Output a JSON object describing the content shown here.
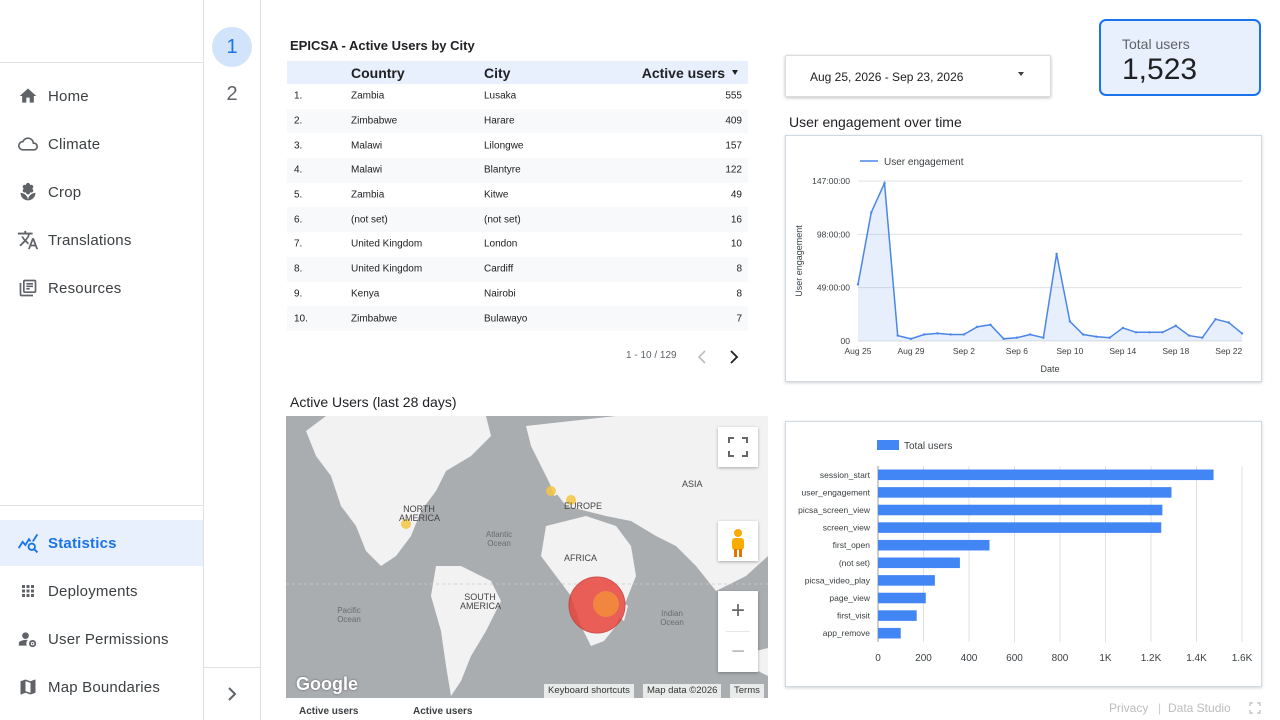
{
  "sidebar": {
    "items": [
      {
        "label": "Home",
        "icon": "home-icon"
      },
      {
        "label": "Climate",
        "icon": "cloud-icon"
      },
      {
        "label": "Crop",
        "icon": "sprout-icon"
      },
      {
        "label": "Translations",
        "icon": "translate-icon"
      },
      {
        "label": "Resources",
        "icon": "library-icon"
      }
    ],
    "bottom_items": [
      {
        "label": "Statistics",
        "icon": "analytics-icon",
        "active": true
      },
      {
        "label": "Deployments",
        "icon": "apps-grid-icon"
      },
      {
        "label": "User Permissions",
        "icon": "user-settings-icon"
      },
      {
        "label": "Map Boundaries",
        "icon": "map-icon"
      }
    ]
  },
  "pages": [
    "1",
    "2"
  ],
  "table": {
    "title": "EPICSA - Active Users by City",
    "headers": [
      "Country",
      "City",
      "Active users"
    ],
    "rows": [
      [
        "1.",
        "Zambia",
        "Lusaka",
        "555"
      ],
      [
        "2.",
        "Zimbabwe",
        "Harare",
        "409"
      ],
      [
        "3.",
        "Malawi",
        "Lilongwe",
        "157"
      ],
      [
        "4.",
        "Malawi",
        "Blantyre",
        "122"
      ],
      [
        "5.",
        "Zambia",
        "Kitwe",
        "49"
      ],
      [
        "6.",
        "(not set)",
        "(not set)",
        "16"
      ],
      [
        "7.",
        "United Kingdom",
        "London",
        "10"
      ],
      [
        "8.",
        "United Kingdom",
        "Cardiff",
        "8"
      ],
      [
        "9.",
        "Kenya",
        "Nairobi",
        "8"
      ],
      [
        "10.",
        "Zimbabwe",
        "Bulawayo",
        "7"
      ]
    ],
    "pager": "1 - 10 / 129"
  },
  "date_range": "Aug 25, 2026 - Sep 23, 2026",
  "kpi": {
    "label": "Total users",
    "value": "1,523"
  },
  "engagement_title": "User engagement over time",
  "map": {
    "title": "Active Users (last 28 days)",
    "labels": {
      "na": "NORTH AMERICA",
      "sa": "SOUTH AMERICA",
      "eu": "EUROPE",
      "af": "AFRICA",
      "as": "ASIA",
      "atl": "Atlantic Ocean",
      "pac": "Pacific Ocean",
      "ind": "Indian Ocean"
    },
    "logo": "Google",
    "footer": [
      "Keyboard shortcuts",
      "Map data ©2026",
      "Terms"
    ]
  },
  "bottom_labels": [
    "Active users",
    "Active users"
  ],
  "footer": [
    "Privacy",
    "Data Studio"
  ],
  "colors": {
    "accent": "#1a73e8",
    "bar": "#4285f4",
    "line": "#4a86e8"
  },
  "chart_data": [
    {
      "type": "line",
      "legend": "User engagement",
      "legend_position": "top-left",
      "xlabel": "Date",
      "ylabel": "User engagement",
      "x_ticks": [
        "Aug 25",
        "Aug 29",
        "Sep 2",
        "Sep 6",
        "Sep 10",
        "Sep 14",
        "Sep 18",
        "Sep 22"
      ],
      "y_ticks": [
        "00",
        "49:00:00",
        "98:00:00",
        "147:00:00"
      ],
      "ylim_hours": [
        0,
        147
      ],
      "x": [
        "Aug 25",
        "Aug 26",
        "Aug 27",
        "Aug 28",
        "Aug 29",
        "Aug 30",
        "Aug 31",
        "Sep 1",
        "Sep 2",
        "Sep 3",
        "Sep 4",
        "Sep 5",
        "Sep 6",
        "Sep 7",
        "Sep 8",
        "Sep 9",
        "Sep 10",
        "Sep 11",
        "Sep 12",
        "Sep 13",
        "Sep 14",
        "Sep 15",
        "Sep 16",
        "Sep 17",
        "Sep 18",
        "Sep 19",
        "Sep 20",
        "Sep 21",
        "Sep 22",
        "Sep 23"
      ],
      "values_hours": [
        52,
        118,
        145,
        5,
        2,
        6,
        7,
        6,
        6,
        13,
        15,
        2,
        3,
        6,
        3,
        80,
        18,
        6,
        4,
        3,
        12,
        8,
        8,
        8,
        14,
        5,
        3,
        20,
        17,
        7
      ],
      "grid": true
    },
    {
      "type": "bar",
      "orientation": "horizontal",
      "legend": "Total users",
      "legend_position": "top-left",
      "categories": [
        "session_start",
        "user_engagement",
        "picsa_screen_view",
        "screen_view",
        "first_open",
        "(not set)",
        "picsa_video_play",
        "page_view",
        "first_visit",
        "app_remove"
      ],
      "values": [
        1475,
        1290,
        1250,
        1245,
        490,
        360,
        250,
        210,
        170,
        100
      ],
      "x_ticks": [
        "0",
        "200",
        "400",
        "600",
        "800",
        "1K",
        "1.2K",
        "1.4K",
        "1.6K"
      ],
      "xlim": [
        0,
        1600
      ],
      "grid": true
    }
  ]
}
